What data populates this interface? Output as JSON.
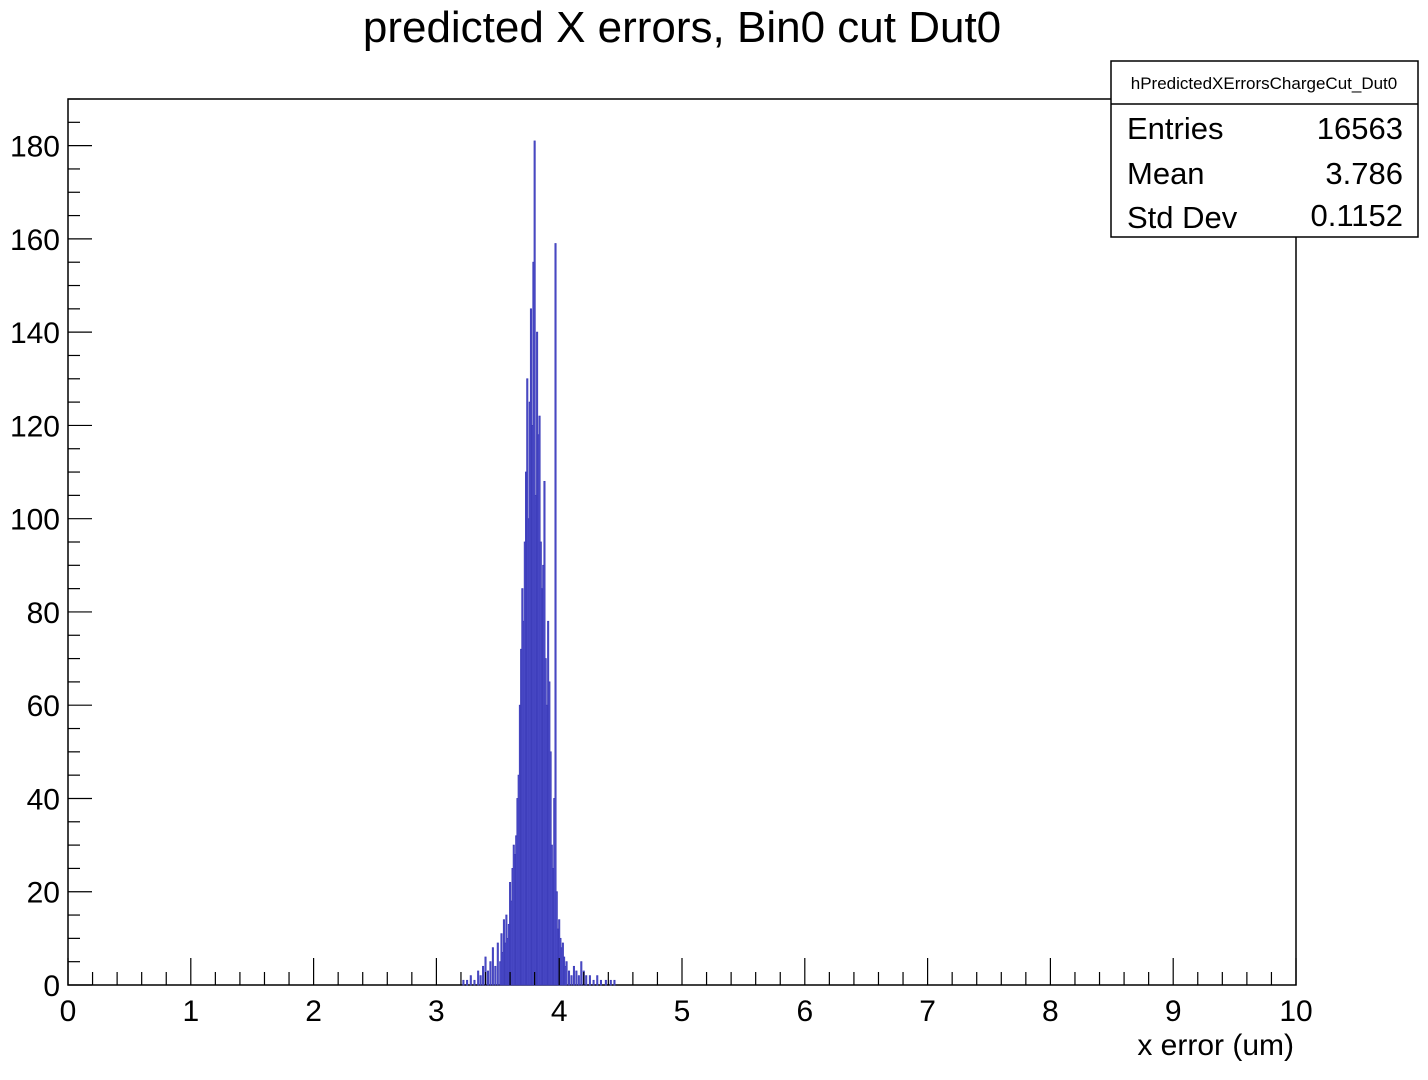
{
  "chart_data": {
    "type": "bar",
    "title": "predicted X errors, Bin0 cut Dut0",
    "xlabel": "x error (um)",
    "ylabel": "",
    "xlim": [
      0,
      10
    ],
    "ylim": [
      0,
      190
    ],
    "x_ticks": [
      "0",
      "1",
      "2",
      "3",
      "4",
      "5",
      "6",
      "7",
      "8",
      "9",
      "10"
    ],
    "y_ticks": [
      "0",
      "20",
      "40",
      "60",
      "80",
      "100",
      "120",
      "140",
      "160",
      "180"
    ],
    "grid": false,
    "series_color": "#3b3bb8",
    "fill_color": "#5b5bd6",
    "bin_width": 0.01,
    "x": [
      3.22,
      3.25,
      3.28,
      3.31,
      3.34,
      3.36,
      3.38,
      3.4,
      3.42,
      3.44,
      3.46,
      3.48,
      3.5,
      3.52,
      3.53,
      3.54,
      3.55,
      3.56,
      3.57,
      3.58,
      3.59,
      3.6,
      3.61,
      3.62,
      3.63,
      3.64,
      3.65,
      3.66,
      3.67,
      3.68,
      3.69,
      3.7,
      3.71,
      3.72,
      3.73,
      3.74,
      3.75,
      3.76,
      3.77,
      3.78,
      3.79,
      3.8,
      3.81,
      3.82,
      3.83,
      3.84,
      3.85,
      3.86,
      3.87,
      3.88,
      3.89,
      3.9,
      3.91,
      3.92,
      3.93,
      3.94,
      3.95,
      3.96,
      3.97,
      3.98,
      3.99,
      4.0,
      4.01,
      4.02,
      4.03,
      4.04,
      4.05,
      4.06,
      4.08,
      4.1,
      4.12,
      4.14,
      4.16,
      4.18,
      4.2,
      4.22,
      4.25,
      4.28,
      4.31,
      4.34,
      4.38,
      4.42,
      4.45
    ],
    "values": [
      1,
      1,
      2,
      1,
      3,
      2,
      4,
      6,
      3,
      5,
      8,
      4,
      9,
      5,
      11,
      7,
      14,
      9,
      15,
      10,
      13,
      22,
      18,
      25,
      30,
      28,
      32,
      40,
      45,
      60,
      72,
      85,
      78,
      95,
      110,
      130,
      100,
      125,
      145,
      120,
      155,
      181,
      105,
      140,
      118,
      122,
      95,
      85,
      90,
      108,
      70,
      60,
      78,
      65,
      50,
      30,
      25,
      40,
      159,
      20,
      12,
      14,
      10,
      8,
      9,
      6,
      4,
      5,
      3,
      2,
      4,
      3,
      2,
      5,
      3,
      2,
      2,
      1,
      2,
      1,
      1,
      1,
      1
    ],
    "stats_box": {
      "name": "hPredictedXErrorsChargeCut_Dut0",
      "rows": [
        {
          "label": "Entries",
          "value": "16563"
        },
        {
          "label": "Mean",
          "value": "3.786"
        },
        {
          "label": "Std Dev",
          "value": "0.1152"
        }
      ]
    }
  }
}
